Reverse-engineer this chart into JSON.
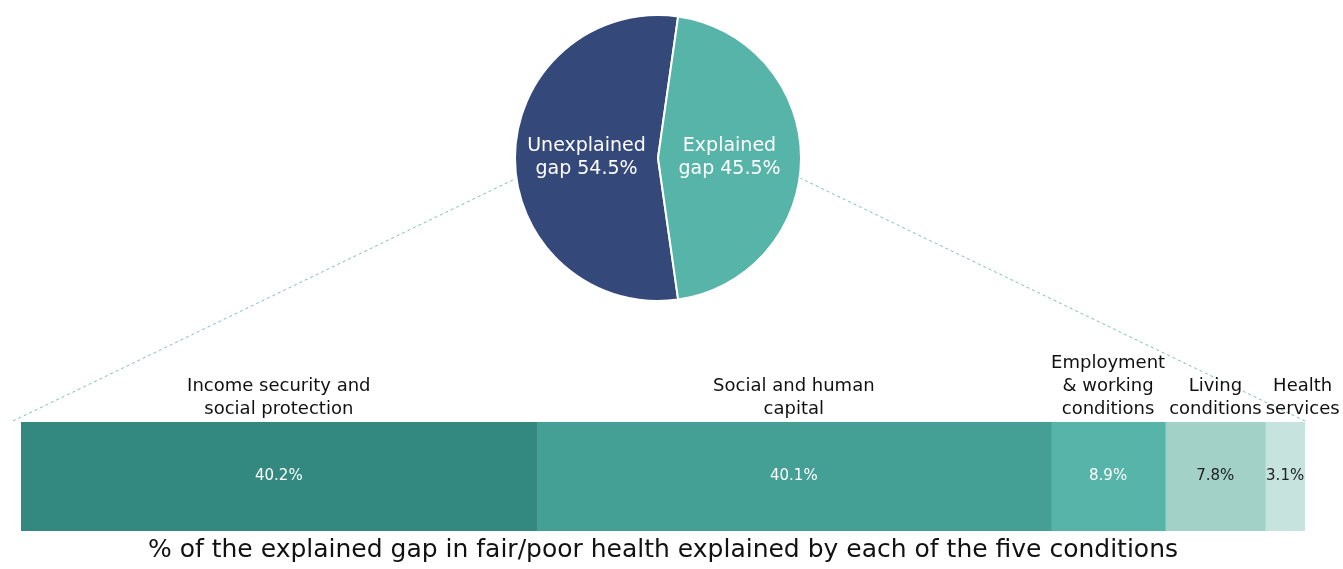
{
  "chart_data": [
    {
      "type": "pie",
      "categories": [
        "Unexplained gap",
        "Explained gap"
      ],
      "values": [
        54.5,
        45.5
      ],
      "colors": [
        "#34487a",
        "#56b4a9"
      ],
      "value_labels": [
        "54.5%",
        "45.5%"
      ],
      "legend": false
    },
    {
      "type": "bar",
      "orientation": "horizontal",
      "stacked": true,
      "categories": [
        null
      ],
      "xlim": [
        0,
        100.1
      ],
      "tick_labels": false,
      "legend": false,
      "xlabel": "% of the explained gap in fair/poor health explained by each of the five conditions",
      "series": [
        {
          "name": "Income security and social protection",
          "color": "#33897f",
          "values": [
            40.2
          ],
          "value_labels": [
            "40.2%"
          ]
        },
        {
          "name": "Social and human capital",
          "color": "#44a095",
          "values": [
            40.1
          ],
          "value_labels": [
            "40.1%"
          ]
        },
        {
          "name": "Employment & working conditions",
          "color": "#56b4a9",
          "values": [
            8.9
          ],
          "value_labels": [
            "8.9%"
          ]
        },
        {
          "name": "Living conditions",
          "color": "#a1d1c7",
          "values": [
            7.8
          ],
          "value_labels": [
            "7.8%"
          ]
        },
        {
          "name": "Health services",
          "color": "#c6e3de",
          "values": [
            3.1
          ],
          "value_labels": [
            "3.1%"
          ]
        }
      ]
    }
  ]
}
